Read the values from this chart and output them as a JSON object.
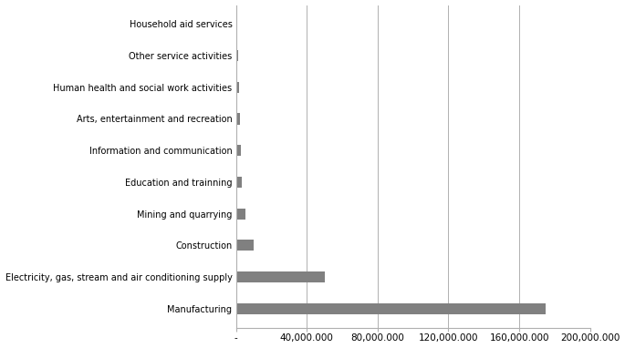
{
  "categories": [
    "Manufacturing",
    "Electricity, gas, stream and air conditioning supply",
    "Construction",
    "Mining and quarrying",
    "Education and trainning",
    "Information and communication",
    "Arts, entertainment and recreation",
    "Human health and social work activities",
    "Other service activities",
    "Household aid services"
  ],
  "values": [
    175000000,
    50000000,
    10000000,
    5500000,
    3500000,
    3000000,
    2500000,
    2000000,
    1000000,
    400000
  ],
  "bar_color": "#808080",
  "background_color": "#ffffff",
  "xlim": [
    0,
    200000000
  ],
  "xticks": [
    0,
    40000000,
    80000000,
    120000000,
    160000000,
    200000000
  ],
  "xtick_labels": [
    "-",
    "40,000.000",
    "80,000.000",
    "120,000.000",
    "160,000.000",
    "200,000.000"
  ],
  "grid_color": "#b0b0b0",
  "bar_height": 0.35
}
